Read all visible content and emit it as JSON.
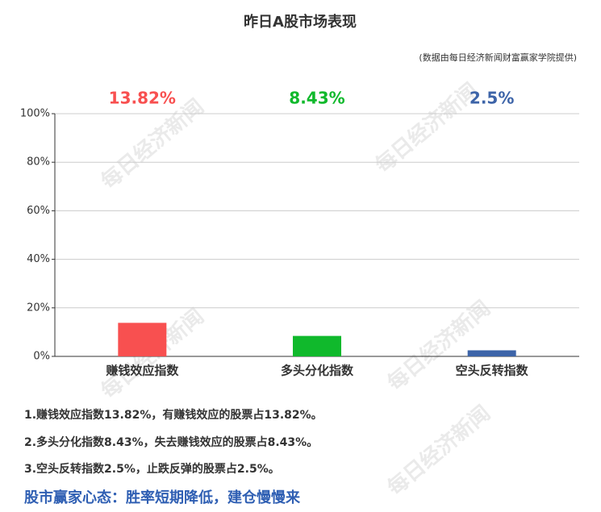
{
  "chart_data": {
    "type": "bar",
    "title": "昨日A股市场表现",
    "subtitle": "(数据由每日经济新闻财富赢家学院提供)",
    "categories": [
      "赚钱效应指数",
      "多头分化指数",
      "空头反转指数"
    ],
    "values": [
      13.82,
      8.43,
      2.5
    ],
    "value_labels": [
      "13.82%",
      "8.43%",
      "2.5%"
    ],
    "colors": [
      "#f85050",
      "#10b92c",
      "#3d64a8"
    ],
    "ylim": [
      0,
      100
    ],
    "yticks": [
      {
        "value": 0,
        "label": "0%"
      },
      {
        "value": 20,
        "label": "20%"
      },
      {
        "value": 40,
        "label": "40%"
      },
      {
        "value": 60,
        "label": "60%"
      },
      {
        "value": 80,
        "label": "80%"
      },
      {
        "value": 100,
        "label": "100%"
      }
    ],
    "grid": true
  },
  "watermark": "每日经济新闻",
  "notes": [
    "1.赚钱效应指数13.82%，有赚钱效应的股票占13.82%。",
    "2.多头分化指数8.43%，失去赚钱效应的股票占8.43%。",
    "3.空头反转指数2.5%，止跌反弹的股票占2.5%。"
  ],
  "conclusion": "股市赢家心态：胜率短期降低，建仓慢慢来"
}
